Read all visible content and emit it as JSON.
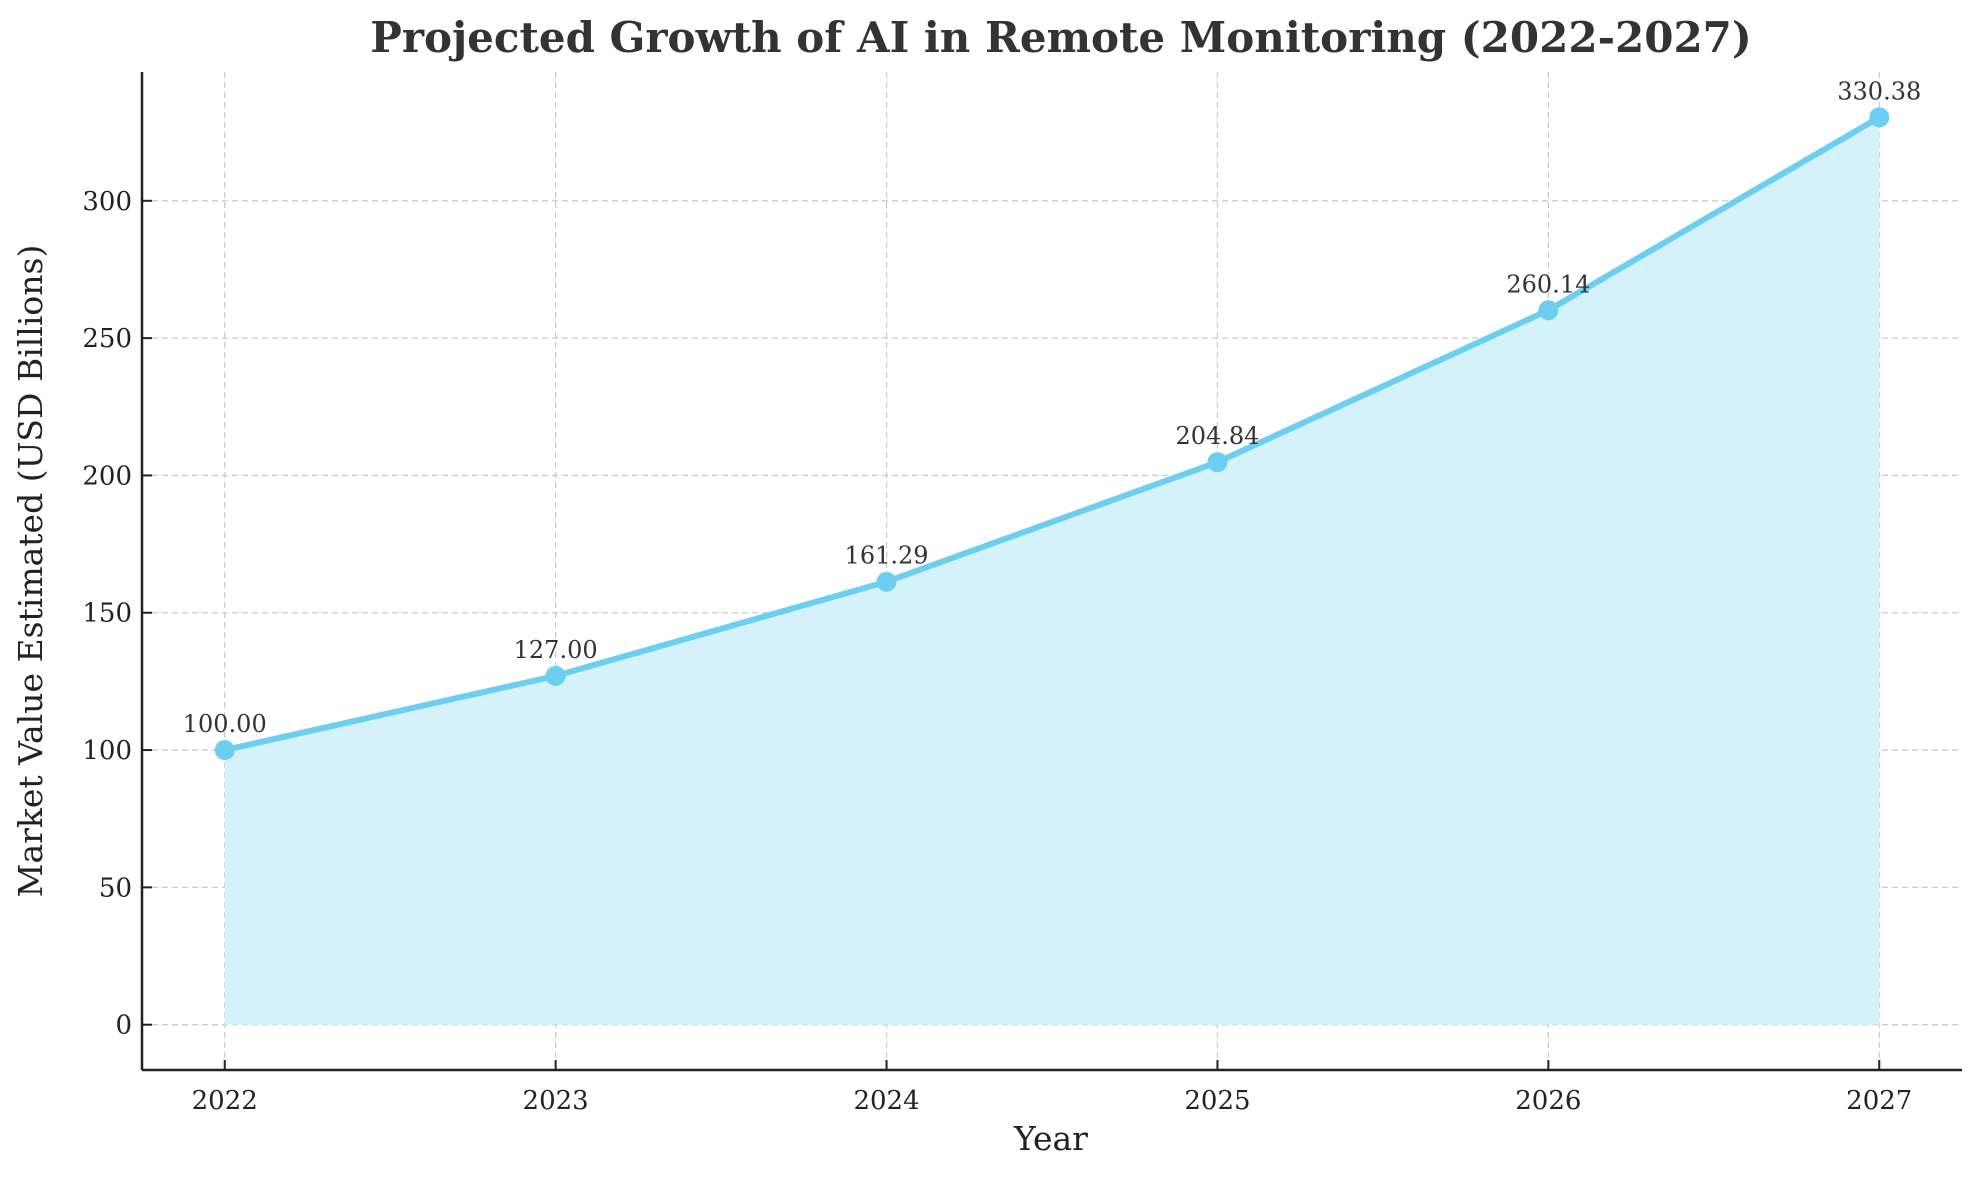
{
  "chart_data": {
    "type": "area",
    "title": "Projected Growth of AI in Remote Monitoring (2022-2027)",
    "xlabel": "Year",
    "ylabel": "Market Value Estimated (USD Billions)",
    "x": [
      2022,
      2023,
      2024,
      2025,
      2026,
      2027
    ],
    "values": [
      100.0,
      127.0,
      161.29,
      204.84,
      260.14,
      330.38
    ],
    "data_labels": [
      "100.00",
      "127.00",
      "161.29",
      "204.84",
      "260.14",
      "330.38"
    ],
    "x_ticks": [
      "2022",
      "2023",
      "2024",
      "2025",
      "2026",
      "2027"
    ],
    "y_ticks": [
      0,
      50,
      100,
      150,
      200,
      250,
      300
    ],
    "xlim": [
      2021.75,
      2027.25
    ],
    "ylim": [
      -16.5,
      346.9
    ],
    "grid": true,
    "colors": {
      "line": "#6ccff0",
      "fill": "#d5f1f9",
      "grid": "#cccccc"
    }
  }
}
